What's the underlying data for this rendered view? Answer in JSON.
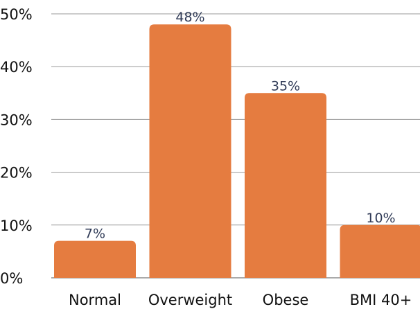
{
  "chart_data": {
    "type": "bar",
    "categories": [
      "Normal",
      "Overweight",
      "Obese",
      "BMI 40+"
    ],
    "values": [
      7,
      48,
      35,
      10
    ],
    "value_labels": [
      "7%",
      "48%",
      "35%",
      "10%"
    ],
    "yticks": [
      "0%",
      "10%",
      "20%",
      "30%",
      "40%",
      "50%"
    ],
    "ytick_values": [
      0,
      10,
      20,
      30,
      40,
      50
    ],
    "ylim": [
      0,
      50
    ],
    "grid": true,
    "legend": "none",
    "bar_color": "#e57c40"
  }
}
